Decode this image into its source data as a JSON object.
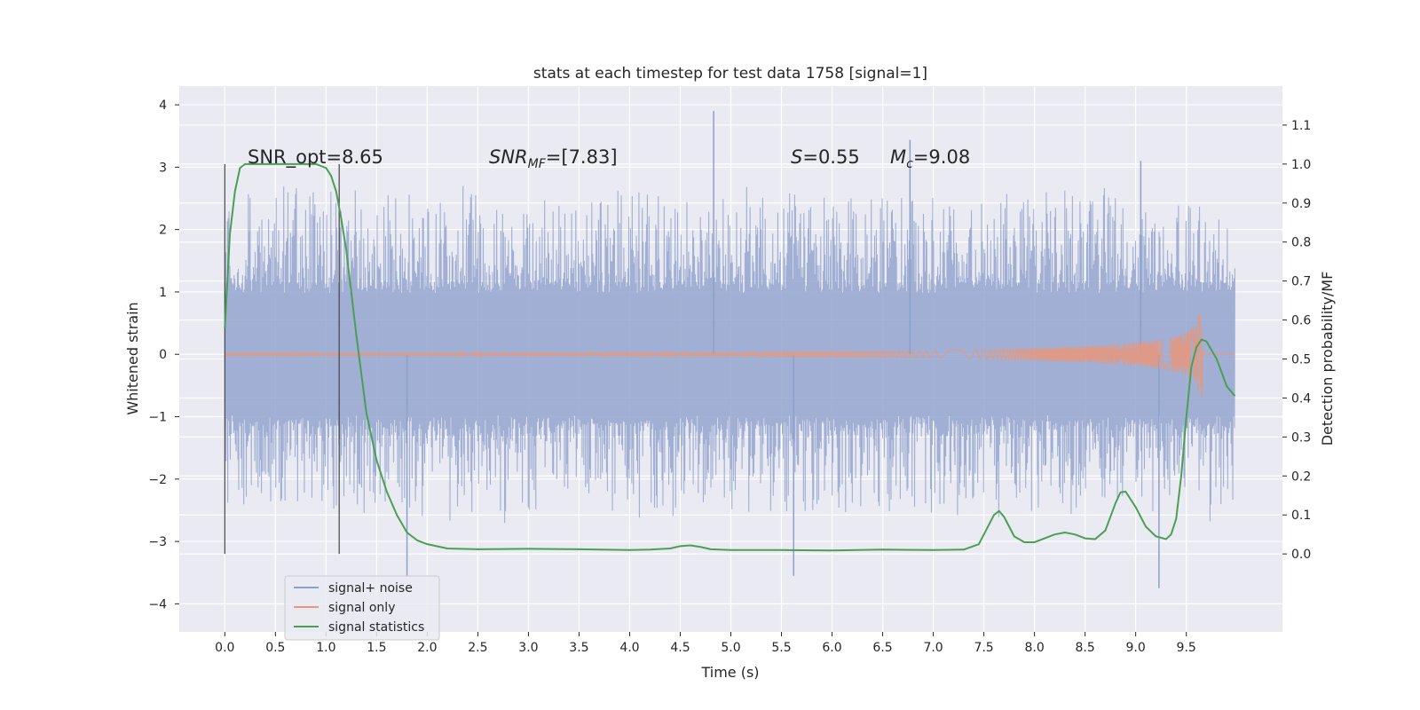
{
  "chart_data": {
    "type": "line",
    "title": "stats at each timestep for test data 1758 [signal=1]",
    "xlabel": "Time (s)",
    "ylabel": "Whitened strain",
    "y2label": "Detection probability/MF",
    "xlim": [
      -0.45,
      10.45
    ],
    "ylim": [
      -4.45,
      4.3
    ],
    "y2lim": [
      -0.2,
      1.2
    ],
    "x_ticks": [
      "0.0",
      "0.5",
      "1.0",
      "1.5",
      "2.0",
      "2.5",
      "3.0",
      "3.5",
      "4.0",
      "4.5",
      "5.0",
      "5.5",
      "6.0",
      "6.5",
      "7.0",
      "7.5",
      "8.0",
      "8.5",
      "9.0",
      "9.5"
    ],
    "y_ticks": [
      "4",
      "3",
      "2",
      "1",
      "0",
      "−1",
      "−2",
      "−3",
      "−4"
    ],
    "y2_ticks": [
      "1.1",
      "1.0",
      "0.9",
      "0.8",
      "0.7",
      "0.6",
      "0.5",
      "0.4",
      "0.3",
      "0.2",
      "0.1",
      "0.0"
    ],
    "grid": true,
    "legend_position": "lower-left",
    "annotations": {
      "snr_opt": "SNR_opt=8.65",
      "snr_mf_italic": "SNR",
      "snr_mf_sub": "MF",
      "snr_mf_value": "=[7.83]",
      "s_symbol": "S",
      "s_value": "=0.55",
      "mc_symbol": "M",
      "mc_sub": "c",
      "mc_value": "=9.08"
    },
    "vertical_markers": [
      0.0,
      1.13
    ],
    "series": [
      {
        "name": "signal+ noise",
        "color": "#8da0cb",
        "style": "dense noise, approx. zero-mean whitened strain, |amplitude| mostly within 1–2.7, peaks to about 3.9",
        "x_range": [
          0.0,
          9.98
        ],
        "notable_peaks": [
          [
            4.83,
            3.9
          ],
          [
            6.77,
            3.44
          ],
          [
            9.05,
            3.1
          ],
          [
            1.8,
            -3.55
          ],
          [
            5.62,
            -3.55
          ],
          [
            9.23,
            -3.75
          ]
        ]
      },
      {
        "name": "signal only",
        "color": "#e9967a",
        "style": "chirp, amplitude grows toward merger at about 9.65 s, then flat",
        "x_range": [
          0.0,
          9.98
        ],
        "envelope": {
          "t": [
            0.0,
            3.0,
            5.0,
            6.0,
            7.0,
            8.0,
            8.5,
            9.0,
            9.3,
            9.5,
            9.6,
            9.65,
            9.67
          ],
          "amplitude": [
            0.01,
            0.015,
            0.02,
            0.04,
            0.06,
            0.1,
            0.13,
            0.19,
            0.25,
            0.34,
            0.5,
            0.85,
            0.0
          ]
        }
      },
      {
        "name": "signal statistics",
        "color": "#4b9f54",
        "axis": "right",
        "x": [
          0.0,
          0.05,
          0.1,
          0.15,
          0.2,
          0.3,
          0.4,
          0.5,
          0.6,
          0.7,
          0.8,
          0.9,
          1.0,
          1.05,
          1.1,
          1.15,
          1.2,
          1.25,
          1.3,
          1.35,
          1.4,
          1.5,
          1.6,
          1.7,
          1.8,
          1.9,
          2.0,
          2.2,
          2.5,
          3.0,
          3.5,
          4.0,
          4.2,
          4.4,
          4.5,
          4.6,
          4.7,
          4.8,
          5.0,
          5.5,
          6.0,
          6.5,
          7.0,
          7.3,
          7.45,
          7.55,
          7.6,
          7.65,
          7.7,
          7.75,
          7.8,
          7.9,
          8.0,
          8.1,
          8.2,
          8.3,
          8.4,
          8.5,
          8.6,
          8.7,
          8.8,
          8.85,
          8.9,
          9.0,
          9.1,
          9.2,
          9.3,
          9.35,
          9.4,
          9.45,
          9.5,
          9.55,
          9.6,
          9.65,
          9.7,
          9.8,
          9.9,
          9.98
        ],
        "values": [
          0.58,
          0.82,
          0.93,
          0.99,
          1.0,
          1.0,
          1.0,
          1.0,
          1.0,
          1.0,
          1.0,
          1.0,
          0.99,
          0.97,
          0.93,
          0.86,
          0.78,
          0.67,
          0.56,
          0.46,
          0.36,
          0.24,
          0.16,
          0.1,
          0.055,
          0.035,
          0.025,
          0.014,
          0.012,
          0.013,
          0.012,
          0.01,
          0.011,
          0.014,
          0.02,
          0.022,
          0.018,
          0.012,
          0.01,
          0.01,
          0.009,
          0.011,
          0.01,
          0.011,
          0.025,
          0.075,
          0.1,
          0.11,
          0.095,
          0.07,
          0.045,
          0.03,
          0.03,
          0.04,
          0.05,
          0.055,
          0.05,
          0.04,
          0.038,
          0.06,
          0.13,
          0.158,
          0.16,
          0.12,
          0.07,
          0.045,
          0.038,
          0.05,
          0.09,
          0.2,
          0.35,
          0.48,
          0.53,
          0.55,
          0.545,
          0.5,
          0.43,
          0.405
        ]
      }
    ]
  }
}
